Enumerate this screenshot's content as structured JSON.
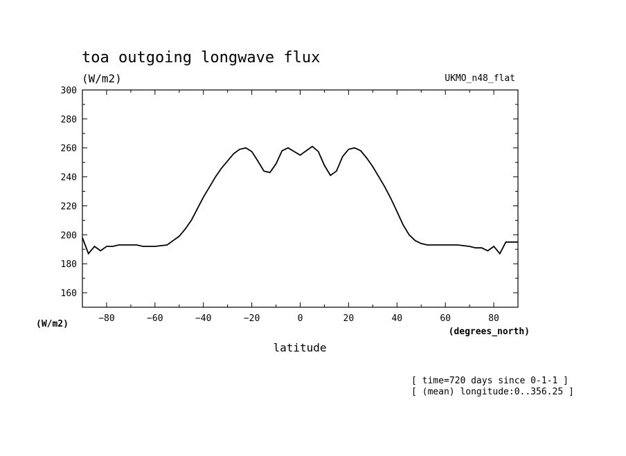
{
  "chart_data": {
    "type": "line",
    "title": "toa outgoing longwave flux",
    "units": "(W/m2)",
    "model": "UKMO_n48_flat",
    "xlabel": "latitude",
    "x_units": "(degrees_north)",
    "y_units": "(W/m2)",
    "xlim": [
      -90,
      90
    ],
    "ylim": [
      150,
      300
    ],
    "xticks": [
      -80,
      -60,
      -40,
      -20,
      0,
      20,
      40,
      60,
      80
    ],
    "yticks": [
      160,
      180,
      200,
      220,
      240,
      260,
      280,
      300
    ],
    "notes": [
      "[ time=720 days since 0-1-1 ]",
      "[ (mean) longitude:0..356.25 ]"
    ],
    "grid": false,
    "x": [
      -90,
      -87.5,
      -85,
      -82.5,
      -80,
      -77.5,
      -75,
      -72.5,
      -70,
      -67.5,
      -65,
      -62.5,
      -60,
      -57.5,
      -55,
      -52.5,
      -50,
      -47.5,
      -45,
      -42.5,
      -40,
      -37.5,
      -35,
      -32.5,
      -30,
      -27.5,
      -25,
      -22.5,
      -20,
      -17.5,
      -15,
      -12.5,
      -10,
      -7.5,
      -5,
      -2.5,
      0,
      2.5,
      5,
      7.5,
      10,
      12.5,
      15,
      17.5,
      20,
      22.5,
      25,
      27.5,
      30,
      32.5,
      35,
      37.5,
      40,
      42.5,
      45,
      47.5,
      50,
      52.5,
      55,
      57.5,
      60,
      62.5,
      65,
      67.5,
      70,
      72.5,
      75,
      77.5,
      80,
      82.5,
      85,
      87.5,
      90
    ],
    "y": [
      198,
      187,
      192,
      189,
      192,
      192,
      193,
      193,
      193,
      193,
      192,
      192,
      192,
      192.5,
      193,
      196,
      199,
      204,
      210,
      218,
      226,
      233,
      240,
      246,
      251,
      256,
      259,
      260,
      257.5,
      251,
      244,
      243,
      249,
      258,
      260,
      257.5,
      255,
      258,
      261,
      257.5,
      248,
      241,
      244,
      254,
      259,
      260,
      258,
      253,
      247,
      240,
      233,
      225,
      216,
      207,
      200,
      196,
      194,
      193,
      193,
      193,
      193,
      193,
      193,
      192.5,
      192,
      191,
      191,
      189,
      192,
      187,
      195,
      195,
      195
    ]
  }
}
